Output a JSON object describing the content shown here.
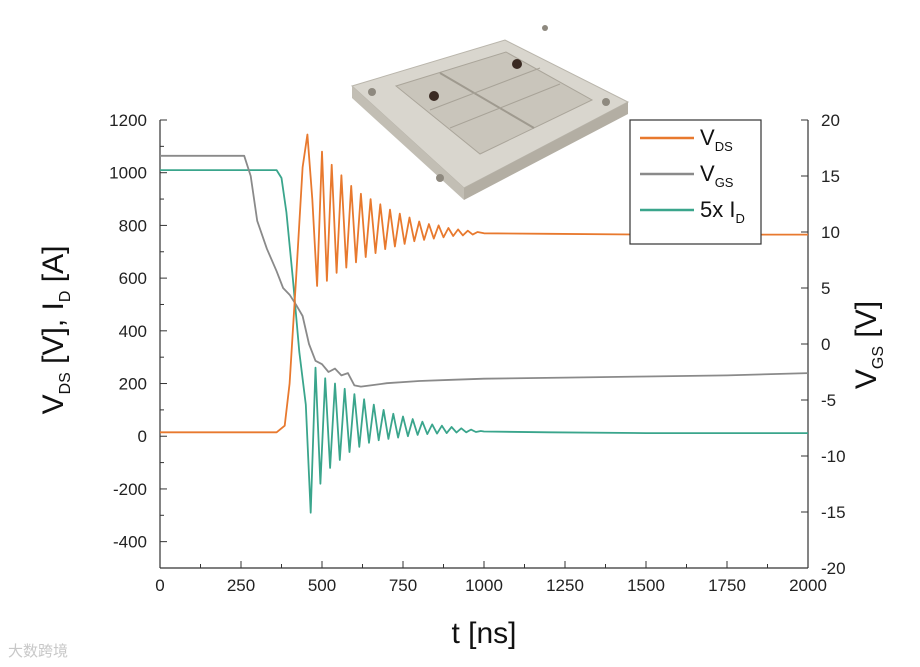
{
  "chart_data": {
    "type": "line",
    "xlabel": "t [ns]",
    "ylabel_left": {
      "main": "V",
      "sub1": "DS",
      "mid": " [V], I",
      "sub2": "D",
      "end": " [A]"
    },
    "ylabel_right": {
      "main": "V",
      "sub": "GS",
      "end": " [V]"
    },
    "xlim": [
      0,
      2000
    ],
    "ylim_left": [
      -500,
      1200
    ],
    "ylim_right": [
      -20,
      20
    ],
    "x_ticks": [
      0,
      250,
      500,
      750,
      1000,
      1250,
      1500,
      1750,
      2000
    ],
    "y_ticks_left": [
      -400,
      -200,
      0,
      200,
      400,
      600,
      800,
      1000,
      1200
    ],
    "y_ticks_right": [
      -20,
      -15,
      -10,
      -5,
      0,
      5,
      10,
      15,
      20
    ],
    "grid": false,
    "legend_position": "top-right",
    "series": [
      {
        "name": "V_DS",
        "legend_main": "V",
        "legend_sub": "DS",
        "axis": "left",
        "color": "#e8792e",
        "x": [
          0,
          360,
          385,
          400,
          420,
          440,
          455,
          470,
          485,
          500,
          515,
          530,
          545,
          560,
          575,
          590,
          605,
          620,
          635,
          650,
          665,
          680,
          695,
          710,
          725,
          740,
          755,
          770,
          785,
          800,
          815,
          830,
          845,
          860,
          875,
          890,
          905,
          920,
          935,
          950,
          965,
          980,
          1000,
          1200,
          1500,
          2000
        ],
        "y": [
          15,
          15,
          40,
          200,
          600,
          1020,
          1145,
          900,
          570,
          1080,
          590,
          1030,
          620,
          990,
          640,
          950,
          660,
          920,
          680,
          900,
          695,
          880,
          710,
          860,
          720,
          845,
          730,
          830,
          740,
          815,
          745,
          805,
          750,
          800,
          755,
          790,
          760,
          785,
          762,
          780,
          765,
          775,
          770,
          768,
          765,
          765
        ]
      },
      {
        "name": "V_GS",
        "legend_main": "V",
        "legend_sub": "GS",
        "axis": "right",
        "color": "#8a8a8a",
        "x": [
          0,
          260,
          280,
          300,
          330,
          360,
          380,
          400,
          420,
          440,
          460,
          480,
          500,
          520,
          540,
          560,
          580,
          600,
          620,
          650,
          700,
          800,
          900,
          1000,
          1250,
          1500,
          1750,
          2000
        ],
        "y": [
          16.8,
          16.8,
          15,
          11,
          8.5,
          6.5,
          5,
          4.4,
          3.5,
          2.5,
          0,
          -1.5,
          -1.8,
          -2.5,
          -2.2,
          -2.8,
          -2.6,
          -3.7,
          -3.8,
          -3.7,
          -3.5,
          -3.3,
          -3.2,
          -3.1,
          -3.0,
          -2.9,
          -2.8,
          -2.6
        ]
      },
      {
        "name": "5x I_D",
        "legend_main": "5x I",
        "legend_sub": "D",
        "axis": "left",
        "color": "#3aa58c",
        "x": [
          0,
          360,
          375,
          390,
          410,
          430,
          450,
          465,
          480,
          495,
          510,
          525,
          540,
          555,
          570,
          585,
          600,
          615,
          630,
          645,
          660,
          675,
          690,
          705,
          720,
          735,
          750,
          765,
          780,
          795,
          810,
          825,
          840,
          855,
          870,
          885,
          900,
          915,
          930,
          945,
          960,
          975,
          990,
          1000,
          1200,
          1500,
          2000
        ],
        "y": [
          1010,
          1010,
          980,
          850,
          600,
          320,
          120,
          -290,
          260,
          -180,
          220,
          -120,
          200,
          -90,
          180,
          -60,
          160,
          -40,
          140,
          -25,
          120,
          -15,
          100,
          -10,
          85,
          -5,
          75,
          0,
          65,
          5,
          55,
          8,
          45,
          10,
          40,
          12,
          35,
          14,
          30,
          15,
          25,
          16,
          20,
          18,
          15,
          12,
          12
        ]
      }
    ]
  },
  "watermark": "大数跨境"
}
